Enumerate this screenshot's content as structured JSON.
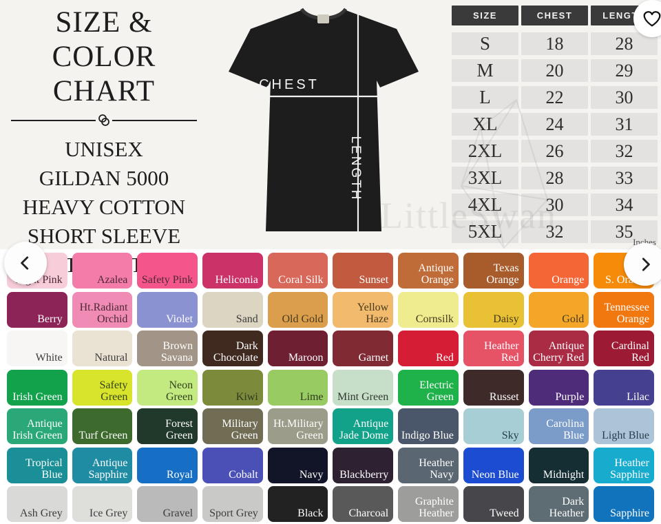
{
  "header": {
    "title_line1": "SIZE & COLOR",
    "title_line2": "CHART",
    "subtitle_lines": [
      "UNISEX",
      "GILDAN 5000",
      "HEAVY COTTON",
      "SHORT SLEEVE",
      "T-SHIRT"
    ]
  },
  "shirt_diagram": {
    "chest_label": "CHEST",
    "length_label": "LENGTH"
  },
  "size_table": {
    "headers": [
      "SIZE",
      "CHEST",
      "LENGTH"
    ],
    "rows": [
      [
        "S",
        "18",
        "28"
      ],
      [
        "M",
        "20",
        "29"
      ],
      [
        "L",
        "22",
        "30"
      ],
      [
        "XL",
        "24",
        "31"
      ],
      [
        "2XL",
        "26",
        "32"
      ],
      [
        "3XL",
        "28",
        "33"
      ],
      [
        "4XL",
        "30",
        "34"
      ],
      [
        "5XL",
        "32",
        "35"
      ]
    ],
    "unit_note": "Inches"
  },
  "controls": {
    "favorite_icon": "heart-outline",
    "prev_icon": "chevron-left",
    "next_icon": "chevron-right"
  },
  "watermark": {
    "text": "LittleSwan"
  },
  "colors": {
    "rows": [
      [
        {
          "label": "Light Pink",
          "bg": "#f7cdd9",
          "fg": "#4e2838"
        },
        {
          "label": "Azalea",
          "bg": "#f37ca9",
          "fg": "#4e2838"
        },
        {
          "label": "Safety Pink",
          "bg": "#f4558b",
          "fg": "#4e2838"
        },
        {
          "label": "Heliconia",
          "bg": "#ca3268",
          "fg": "#ffffff"
        },
        {
          "label": "Coral Silk",
          "bg": "#d8685a",
          "fg": "#ffffff"
        },
        {
          "label": "Sunset",
          "bg": "#c25a40",
          "fg": "#ffffff"
        },
        {
          "label": "Antique Orange",
          "bg": "#c06c38",
          "fg": "#ffffff"
        },
        {
          "label": "Texas Orange",
          "bg": "#a85c2b",
          "fg": "#ffffff"
        },
        {
          "label": "Orange",
          "bg": "#f56636",
          "fg": "#ffffff"
        },
        {
          "label": "S. Orange",
          "bg": "#f68b09",
          "fg": "#ffffff"
        }
      ],
      [
        {
          "label": "Berry",
          "bg": "#8d2458",
          "fg": "#ffffff"
        },
        {
          "label": "Ht.Radiant Orchid",
          "bg": "#ef8bb4",
          "fg": "#4e2838"
        },
        {
          "label": "Violet",
          "bg": "#8a92d2",
          "fg": "#ffffff"
        },
        {
          "label": "Sand",
          "bg": "#dcd5c1",
          "fg": "#3c3c3c"
        },
        {
          "label": "Old Gold",
          "bg": "#da9e4d",
          "fg": "#473a1c"
        },
        {
          "label": "Yellow Haze",
          "bg": "#f1ba6d",
          "fg": "#473a1c"
        },
        {
          "label": "Cornsilk",
          "bg": "#efec90",
          "fg": "#473a1c"
        },
        {
          "label": "Daisy",
          "bg": "#e8c135",
          "fg": "#473a1c"
        },
        {
          "label": "Gold",
          "bg": "#f3a627",
          "fg": "#473a1c"
        },
        {
          "label": "Tennessee Orange",
          "bg": "#f1770f",
          "fg": "#ffffff"
        }
      ],
      [
        {
          "label": "White",
          "bg": "#f7f6f4",
          "fg": "#3c3c3c"
        },
        {
          "label": "Natural",
          "bg": "#eae3d3",
          "fg": "#3c3c3c"
        },
        {
          "label": "Brown Savana",
          "bg": "#a29486",
          "fg": "#ffffff"
        },
        {
          "label": "Dark Chocolate",
          "bg": "#40291f",
          "fg": "#ffffff"
        },
        {
          "label": "Maroon",
          "bg": "#6e1f31",
          "fg": "#ffffff"
        },
        {
          "label": "Garnet",
          "bg": "#802a34",
          "fg": "#ffffff"
        },
        {
          "label": "Red",
          "bg": "#d51e35",
          "fg": "#ffffff"
        },
        {
          "label": "Heather Red",
          "bg": "#e65266",
          "fg": "#ffffff"
        },
        {
          "label": "Antique Cherry Red",
          "bg": "#aa2b44",
          "fg": "#ffffff"
        },
        {
          "label": "Cardinal Red",
          "bg": "#9c1a33",
          "fg": "#ffffff"
        }
      ],
      [
        {
          "label": "Irish Green",
          "bg": "#13a24c",
          "fg": "#ffffff"
        },
        {
          "label": "Safety Green",
          "bg": "#d8e32b",
          "fg": "#33411c"
        },
        {
          "label": "Neon Green",
          "bg": "#c3ea81",
          "fg": "#33411c"
        },
        {
          "label": "Kiwi",
          "bg": "#7b8b3b",
          "fg": "#2e3a20"
        },
        {
          "label": "Lime",
          "bg": "#98cb61",
          "fg": "#2e3a20"
        },
        {
          "label": "Mint Green",
          "bg": "#c7dec8",
          "fg": "#2f3a31"
        },
        {
          "label": "Electric Green",
          "bg": "#1fb14a",
          "fg": "#ffffff"
        },
        {
          "label": "Russet",
          "bg": "#3e2a29",
          "fg": "#ffffff"
        },
        {
          "label": "Purple",
          "bg": "#4e2c79",
          "fg": "#ffffff"
        },
        {
          "label": "Lilac",
          "bg": "#454090",
          "fg": "#ffffff"
        }
      ],
      [
        {
          "label": "Antique Irish Green",
          "bg": "#2ba878",
          "fg": "#ffffff"
        },
        {
          "label": "Turf Green",
          "bg": "#3c6b2d",
          "fg": "#ffffff"
        },
        {
          "label": "Forest Green",
          "bg": "#20392a",
          "fg": "#ffffff"
        },
        {
          "label": "Military Green",
          "bg": "#716d55",
          "fg": "#ffffff"
        },
        {
          "label": "Ht.Military Green",
          "bg": "#9c9c8a",
          "fg": "#ffffff"
        },
        {
          "label": "Antique Jade Dome",
          "bg": "#12a28a",
          "fg": "#ffffff"
        },
        {
          "label": "Indigo Blue",
          "bg": "#4a576a",
          "fg": "#ffffff"
        },
        {
          "label": "Sky",
          "bg": "#a6ced4",
          "fg": "#27404d"
        },
        {
          "label": "Carolina Blue",
          "bg": "#7b9cc9",
          "fg": "#ffffff"
        },
        {
          "label": "Light Blue",
          "bg": "#abc4d7",
          "fg": "#27404d"
        }
      ],
      [
        {
          "label": "Tropical Blue",
          "bg": "#1b8f97",
          "fg": "#ffffff"
        },
        {
          "label": "Antique Sapphire",
          "bg": "#1f8ca4",
          "fg": "#ffffff"
        },
        {
          "label": "Royal",
          "bg": "#176fc5",
          "fg": "#ffffff"
        },
        {
          "label": "Cobalt",
          "bg": "#4a50b5",
          "fg": "#ffffff"
        },
        {
          "label": "Navy",
          "bg": "#121527",
          "fg": "#ffffff"
        },
        {
          "label": "Blackberry",
          "bg": "#2e2132",
          "fg": "#ffffff"
        },
        {
          "label": "Heather Navy",
          "bg": "#5a6773",
          "fg": "#ffffff"
        },
        {
          "label": "Neon Blue",
          "bg": "#1c4cd2",
          "fg": "#ffffff"
        },
        {
          "label": "Midnight",
          "bg": "#142e34",
          "fg": "#ffffff"
        },
        {
          "label": "Heather Sapphire",
          "bg": "#17abce",
          "fg": "#ffffff"
        }
      ],
      [
        {
          "label": "Ash Grey",
          "bg": "#d9d9d7",
          "fg": "#3c3c3c"
        },
        {
          "label": "Ice Grey",
          "bg": "#dededb",
          "fg": "#3c3c3c"
        },
        {
          "label": "Gravel",
          "bg": "#bababa",
          "fg": "#3c3c3c"
        },
        {
          "label": "Sport Grey",
          "bg": "#c9c9c7",
          "fg": "#3c3c3c"
        },
        {
          "label": "Black",
          "bg": "#222222",
          "fg": "#ffffff"
        },
        {
          "label": "Charcoal",
          "bg": "#595959",
          "fg": "#ffffff"
        },
        {
          "label": "Graphite Heather",
          "bg": "#9d9d9b",
          "fg": "#ffffff"
        },
        {
          "label": "Tweed",
          "bg": "#47474b",
          "fg": "#ffffff"
        },
        {
          "label": "Dark Heather",
          "bg": "#5e6c74",
          "fg": "#ffffff"
        },
        {
          "label": "Sapphire",
          "bg": "#1173bb",
          "fg": "#ffffff"
        }
      ]
    ]
  }
}
